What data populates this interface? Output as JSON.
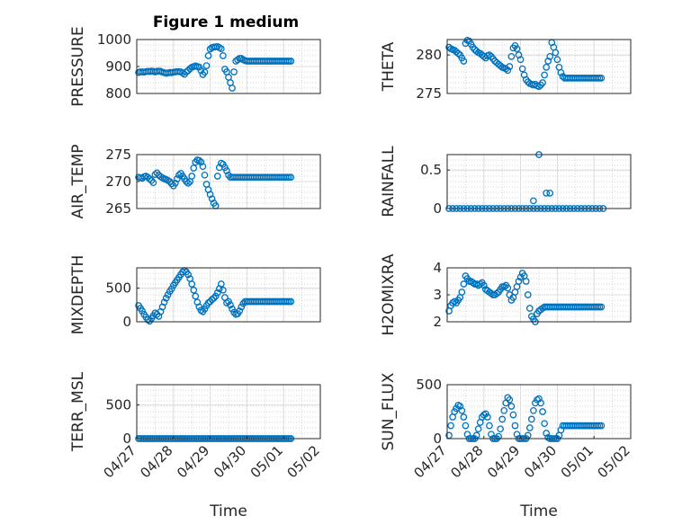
{
  "figure": {
    "title": "Figure 1 medium",
    "marker_color": "#0072BD"
  },
  "chart_data": [
    {
      "type": "scatter",
      "ylabel": "PRESSURE",
      "ylim": [
        800,
        1000
      ],
      "yticks": [
        800,
        900,
        1000
      ],
      "xlim": [
        0,
        5
      ],
      "xticks": [],
      "grid": true,
      "minor_grid": true,
      "x": [
        0.05,
        0.1,
        0.15,
        0.2,
        0.25,
        0.3,
        0.35,
        0.4,
        0.45,
        0.5,
        0.55,
        0.6,
        0.65,
        0.7,
        0.75,
        0.8,
        0.85,
        0.9,
        0.95,
        1.0,
        1.05,
        1.1,
        1.15,
        1.2,
        1.25,
        1.3,
        1.35,
        1.4,
        1.45,
        1.5,
        1.55,
        1.6,
        1.65,
        1.7,
        1.75,
        1.8,
        1.85,
        1.9,
        1.95,
        2.0,
        2.05,
        2.1,
        2.15,
        2.2,
        2.25,
        2.3,
        2.35,
        2.4,
        2.45,
        2.5,
        2.55,
        2.6,
        2.65,
        2.7,
        2.75,
        2.8,
        2.85,
        2.9,
        2.95,
        3.0,
        3.05,
        3.1,
        3.15,
        3.2,
        3.25,
        3.3,
        3.35,
        3.4,
        3.45,
        3.5,
        3.55,
        3.6,
        3.65,
        3.7,
        3.75,
        3.8,
        3.85,
        3.9,
        3.95,
        4.0,
        4.05,
        4.1,
        4.15,
        4.2
      ],
      "y": [
        878,
        880,
        880,
        879,
        881,
        882,
        881,
        883,
        882,
        880,
        882,
        883,
        882,
        879,
        877,
        875,
        876,
        878,
        877,
        879,
        880,
        881,
        881,
        880,
        876,
        871,
        880,
        885,
        892,
        897,
        900,
        902,
        900,
        898,
        885,
        870,
        879,
        903,
        940,
        965,
        970,
        972,
        973,
        974,
        970,
        966,
        940,
        890,
        880,
        860,
        840,
        820,
        880,
        920,
        925,
        930,
        930,
        925,
        922,
        920,
        920,
        920,
        920,
        920,
        920,
        920,
        920,
        920,
        920,
        920,
        920,
        920,
        920,
        920,
        920,
        920,
        920,
        920,
        920,
        920,
        920,
        920,
        920,
        920
      ]
    },
    {
      "type": "scatter",
      "ylabel": "THETA",
      "ylim": [
        275,
        282
      ],
      "yticks": [
        275,
        280
      ],
      "xlim": [
        0,
        5
      ],
      "xticks": [],
      "grid": true,
      "minor_grid": true,
      "x": [
        0.05,
        0.1,
        0.15,
        0.2,
        0.25,
        0.3,
        0.35,
        0.4,
        0.45,
        0.5,
        0.55,
        0.6,
        0.65,
        0.7,
        0.75,
        0.8,
        0.85,
        0.9,
        0.95,
        1.0,
        1.05,
        1.1,
        1.15,
        1.2,
        1.25,
        1.3,
        1.35,
        1.4,
        1.45,
        1.5,
        1.55,
        1.6,
        1.65,
        1.7,
        1.75,
        1.8,
        1.85,
        1.9,
        1.95,
        2.0,
        2.05,
        2.1,
        2.15,
        2.2,
        2.25,
        2.3,
        2.35,
        2.4,
        2.45,
        2.5,
        2.55,
        2.6,
        2.65,
        2.7,
        2.75,
        2.8,
        2.85,
        2.9,
        2.95,
        3.0,
        3.05,
        3.1,
        3.15,
        3.2,
        3.25,
        3.3,
        3.35,
        3.4,
        3.45,
        3.5,
        3.55,
        3.6,
        3.65,
        3.7,
        3.75,
        3.8,
        3.85,
        3.9,
        3.95,
        4.0,
        4.05,
        4.1,
        4.15,
        4.2
      ],
      "y": [
        281,
        280.8,
        280.7,
        280.6,
        280.4,
        280.2,
        280,
        279.6,
        279.2,
        281.5,
        281.9,
        281.8,
        281.4,
        281,
        280.7,
        280.5,
        280.3,
        280.2,
        280,
        279.8,
        279.6,
        279.9,
        280,
        279.8,
        279.5,
        279.2,
        279,
        278.8,
        278.6,
        278.4,
        278.3,
        278.2,
        278,
        278.5,
        279.8,
        280.9,
        281.2,
        280.8,
        280,
        279.4,
        278.2,
        277.4,
        276.8,
        276.5,
        276.3,
        276.2,
        276.1,
        276.2,
        276,
        275.9,
        276.1,
        276.4,
        277.4,
        278.4,
        279.2,
        279.8,
        281.6,
        281,
        280.3,
        279.4,
        278.4,
        277.7,
        277.2,
        277,
        277,
        277,
        277,
        277,
        277,
        277,
        277,
        277,
        277,
        277,
        277,
        277,
        277,
        277,
        277,
        277,
        277,
        277,
        277,
        277
      ]
    },
    {
      "type": "scatter",
      "ylabel": "AIR_TEMP",
      "ylim": [
        265,
        275
      ],
      "yticks": [
        265,
        270,
        275
      ],
      "xlim": [
        0,
        5
      ],
      "xticks": [],
      "grid": true,
      "minor_grid": true,
      "x": [
        0.05,
        0.1,
        0.15,
        0.2,
        0.25,
        0.3,
        0.35,
        0.4,
        0.45,
        0.5,
        0.55,
        0.6,
        0.65,
        0.7,
        0.75,
        0.8,
        0.85,
        0.9,
        0.95,
        1.0,
        1.05,
        1.1,
        1.15,
        1.2,
        1.25,
        1.3,
        1.35,
        1.4,
        1.45,
        1.5,
        1.55,
        1.6,
        1.65,
        1.7,
        1.75,
        1.8,
        1.85,
        1.9,
        1.95,
        2.0,
        2.05,
        2.1,
        2.15,
        2.2,
        2.25,
        2.3,
        2.35,
        2.4,
        2.45,
        2.5,
        2.55,
        2.6,
        2.65,
        2.7,
        2.75,
        2.8,
        2.85,
        2.9,
        2.95,
        3.0,
        3.05,
        3.1,
        3.15,
        3.2,
        3.25,
        3.3,
        3.35,
        3.4,
        3.45,
        3.5,
        3.55,
        3.6,
        3.65,
        3.7,
        3.75,
        3.8,
        3.85,
        3.9,
        3.95,
        4.0,
        4.05,
        4.1,
        4.15,
        4.2
      ],
      "y": [
        270.8,
        270.7,
        270.6,
        270.9,
        271,
        270.8,
        270.5,
        270.2,
        269.8,
        271.3,
        271.6,
        271.2,
        270.9,
        270.7,
        270.5,
        270.4,
        270.2,
        270,
        269.6,
        269.2,
        269.7,
        270.5,
        271.2,
        271.5,
        271,
        270.5,
        270,
        269.7,
        270,
        271,
        272.5,
        273.6,
        274,
        273.9,
        273.6,
        272.8,
        271.2,
        269.5,
        268.5,
        267.6,
        266.8,
        266,
        265.5,
        271,
        272.6,
        273.4,
        273.2,
        272.6,
        272,
        271.2,
        270.8,
        270.8,
        270.8,
        270.8,
        270.8,
        270.8,
        270.8,
        270.8,
        270.8,
        270.8,
        270.8,
        270.8,
        270.8,
        270.8,
        270.8,
        270.8,
        270.8,
        270.8,
        270.8,
        270.8,
        270.8,
        270.8,
        270.8,
        270.8,
        270.8,
        270.8,
        270.8,
        270.8,
        270.8,
        270.8,
        270.8,
        270.8,
        270.8,
        270.8
      ]
    },
    {
      "type": "scatter",
      "ylabel": "RAINFALL",
      "ylim": [
        0,
        0.7
      ],
      "yticks": [
        0,
        0.5
      ],
      "xlim": [
        0,
        5
      ],
      "xticks": [],
      "grid": true,
      "minor_grid": true,
      "x": [
        0.05,
        0.15,
        0.25,
        0.35,
        0.45,
        0.55,
        0.65,
        0.75,
        0.85,
        0.95,
        1.05,
        1.15,
        1.25,
        1.35,
        1.45,
        1.55,
        1.65,
        1.75,
        1.85,
        1.95,
        2.05,
        2.15,
        2.25,
        2.35,
        2.45,
        2.55,
        2.65,
        2.75,
        2.85,
        2.95,
        3.05,
        3.15,
        3.25,
        3.35,
        3.45,
        3.55,
        3.65,
        3.75,
        3.85,
        3.95,
        4.05,
        4.15,
        4.25,
        2.35,
        2.5,
        2.7,
        2.8
      ],
      "y": [
        0,
        0,
        0,
        0,
        0,
        0,
        0,
        0,
        0,
        0,
        0,
        0,
        0,
        0,
        0,
        0,
        0,
        0,
        0,
        0,
        0,
        0,
        0,
        0,
        0,
        0,
        0,
        0,
        0,
        0,
        0,
        0,
        0,
        0,
        0,
        0,
        0,
        0,
        0,
        0,
        0,
        0,
        0,
        0.1,
        0.7,
        0.2,
        0.2
      ]
    },
    {
      "type": "scatter",
      "ylabel": "MIXDEPTH",
      "ylim": [
        0,
        800
      ],
      "yticks": [
        0,
        500
      ],
      "xlim": [
        0,
        5
      ],
      "xticks": [],
      "grid": true,
      "minor_grid": true,
      "x": [
        0.05,
        0.1,
        0.15,
        0.2,
        0.25,
        0.3,
        0.35,
        0.4,
        0.45,
        0.5,
        0.55,
        0.6,
        0.65,
        0.7,
        0.75,
        0.8,
        0.85,
        0.9,
        0.95,
        1.0,
        1.05,
        1.1,
        1.15,
        1.2,
        1.25,
        1.3,
        1.35,
        1.4,
        1.45,
        1.5,
        1.55,
        1.6,
        1.65,
        1.7,
        1.75,
        1.8,
        1.85,
        1.9,
        1.95,
        2.0,
        2.05,
        2.1,
        2.15,
        2.2,
        2.25,
        2.3,
        2.35,
        2.4,
        2.45,
        2.5,
        2.55,
        2.6,
        2.65,
        2.7,
        2.75,
        2.8,
        2.85,
        2.9,
        2.95,
        3.0,
        3.05,
        3.1,
        3.15,
        3.2,
        3.25,
        3.3,
        3.35,
        3.4,
        3.45,
        3.5,
        3.55,
        3.6,
        3.65,
        3.7,
        3.75,
        3.8,
        3.85,
        3.9,
        3.95,
        4.0,
        4.05,
        4.1,
        4.15,
        4.2
      ],
      "y": [
        240,
        200,
        160,
        110,
        70,
        30,
        10,
        50,
        90,
        130,
        110,
        80,
        150,
        220,
        290,
        350,
        400,
        450,
        490,
        540,
        580,
        620,
        660,
        700,
        740,
        760,
        740,
        700,
        640,
        560,
        470,
        380,
        290,
        220,
        170,
        150,
        190,
        240,
        280,
        300,
        330,
        350,
        380,
        430,
        490,
        560,
        470,
        360,
        280,
        300,
        250,
        190,
        140,
        110,
        120,
        160,
        220,
        270,
        300,
        300,
        300,
        300,
        300,
        300,
        300,
        300,
        300,
        300,
        300,
        300,
        300,
        300,
        300,
        300,
        300,
        300,
        300,
        300,
        300,
        300,
        300,
        300,
        300,
        300
      ]
    },
    {
      "type": "scatter",
      "ylabel": "H2OMIXRA",
      "ylim": [
        2,
        4
      ],
      "yticks": [
        2,
        3,
        4
      ],
      "xlim": [
        0,
        5
      ],
      "xticks": [],
      "grid": true,
      "minor_grid": true,
      "x": [
        0.05,
        0.1,
        0.15,
        0.2,
        0.25,
        0.3,
        0.35,
        0.4,
        0.45,
        0.5,
        0.55,
        0.6,
        0.65,
        0.7,
        0.75,
        0.8,
        0.85,
        0.9,
        0.95,
        1.0,
        1.05,
        1.1,
        1.15,
        1.2,
        1.25,
        1.3,
        1.35,
        1.4,
        1.45,
        1.5,
        1.55,
        1.6,
        1.65,
        1.7,
        1.75,
        1.8,
        1.85,
        1.9,
        1.95,
        2.0,
        2.05,
        2.1,
        2.15,
        2.2,
        2.25,
        2.3,
        2.35,
        2.4,
        2.45,
        2.5,
        2.55,
        2.6,
        2.65,
        2.7,
        2.75,
        2.8,
        2.85,
        2.9,
        2.95,
        3.0,
        3.05,
        3.1,
        3.15,
        3.2,
        3.25,
        3.3,
        3.35,
        3.4,
        3.45,
        3.5,
        3.55,
        3.6,
        3.65,
        3.7,
        3.75,
        3.8,
        3.85,
        3.9,
        3.95,
        4.0,
        4.05,
        4.1,
        4.15,
        4.2
      ],
      "y": [
        2.4,
        2.6,
        2.7,
        2.75,
        2.7,
        2.8,
        2.9,
        3.1,
        3.4,
        3.7,
        3.6,
        3.5,
        3.5,
        3.45,
        3.4,
        3.4,
        3.35,
        3.4,
        3.45,
        3.35,
        3.2,
        3.15,
        3.1,
        3.05,
        3.0,
        3.0,
        3.05,
        3.1,
        3.2,
        3.3,
        3.3,
        3.35,
        3.25,
        3.0,
        2.8,
        2.9,
        3.1,
        3.3,
        3.5,
        3.65,
        3.8,
        3.7,
        3.5,
        3.0,
        2.5,
        2.2,
        2.1,
        2.0,
        2.3,
        2.4,
        2.45,
        2.5,
        2.55,
        2.55,
        2.55,
        2.55,
        2.55,
        2.55,
        2.55,
        2.55,
        2.55,
        2.55,
        2.55,
        2.55,
        2.55,
        2.55,
        2.55,
        2.55,
        2.55,
        2.55,
        2.55,
        2.55,
        2.55,
        2.55,
        2.55,
        2.55,
        2.55,
        2.55,
        2.55,
        2.55,
        2.55,
        2.55,
        2.55,
        2.55
      ]
    },
    {
      "type": "scatter",
      "ylabel": "TERR_MSL",
      "ylim": [
        0,
        800
      ],
      "yticks": [
        0,
        500
      ],
      "xlim": [
        0,
        5
      ],
      "xticks": [
        "04/27",
        "04/28",
        "04/29",
        "04/30",
        "05/01",
        "05/02"
      ],
      "xlabel": "Time",
      "grid": true,
      "minor_grid": true,
      "x": [
        0.05,
        0.1,
        0.15,
        0.2,
        0.25,
        0.3,
        0.35,
        0.4,
        0.45,
        0.5,
        0.55,
        0.6,
        0.65,
        0.7,
        0.75,
        0.8,
        0.85,
        0.9,
        0.95,
        1.0,
        1.05,
        1.1,
        1.15,
        1.2,
        1.25,
        1.3,
        1.35,
        1.4,
        1.45,
        1.5,
        1.55,
        1.6,
        1.65,
        1.7,
        1.75,
        1.8,
        1.85,
        1.9,
        1.95,
        2.0,
        2.05,
        2.1,
        2.15,
        2.2,
        2.25,
        2.3,
        2.35,
        2.4,
        2.45,
        2.5,
        2.55,
        2.6,
        2.65,
        2.7,
        2.75,
        2.8,
        2.85,
        2.9,
        2.95,
        3.0,
        3.05,
        3.1,
        3.15,
        3.2,
        3.25,
        3.3,
        3.35,
        3.4,
        3.45,
        3.5,
        3.55,
        3.6,
        3.65,
        3.7,
        3.75,
        3.8,
        3.85,
        3.9,
        3.95,
        4.0,
        4.05,
        4.1,
        4.15,
        4.2
      ],
      "y": [
        0,
        0,
        0,
        0,
        0,
        0,
        0,
        0,
        0,
        0,
        0,
        0,
        0,
        0,
        0,
        0,
        0,
        0,
        0,
        0,
        0,
        0,
        0,
        0,
        0,
        0,
        0,
        0,
        0,
        0,
        0,
        0,
        0,
        0,
        0,
        0,
        0,
        0,
        0,
        0,
        0,
        0,
        0,
        0,
        0,
        0,
        0,
        0,
        0,
        0,
        0,
        0,
        0,
        0,
        0,
        0,
        0,
        0,
        0,
        0,
        0,
        0,
        0,
        0,
        0,
        0,
        0,
        0,
        0,
        0,
        0,
        0,
        0,
        0,
        0,
        0,
        0,
        0,
        0,
        0,
        0,
        0,
        0,
        0
      ]
    },
    {
      "type": "scatter",
      "ylabel": "SUN_FLUX",
      "ylim": [
        0,
        500
      ],
      "yticks": [
        0,
        500
      ],
      "xlim": [
        0,
        5
      ],
      "xticks": [
        "04/27",
        "04/28",
        "04/29",
        "04/30",
        "05/01",
        "05/02"
      ],
      "xlabel": "Time",
      "grid": true,
      "minor_grid": true,
      "x": [
        0.05,
        0.1,
        0.15,
        0.2,
        0.25,
        0.3,
        0.35,
        0.4,
        0.45,
        0.5,
        0.55,
        0.6,
        0.65,
        0.7,
        0.75,
        0.8,
        0.85,
        0.9,
        0.95,
        1.0,
        1.05,
        1.1,
        1.15,
        1.2,
        1.25,
        1.3,
        1.35,
        1.4,
        1.45,
        1.5,
        1.55,
        1.6,
        1.65,
        1.7,
        1.75,
        1.8,
        1.85,
        1.9,
        1.95,
        2.0,
        2.05,
        2.1,
        2.15,
        2.2,
        2.25,
        2.3,
        2.35,
        2.4,
        2.45,
        2.5,
        2.55,
        2.6,
        2.65,
        2.7,
        2.75,
        2.8,
        2.85,
        2.9,
        2.95,
        3.0,
        3.05,
        3.1,
        3.15,
        3.2,
        3.25,
        3.3,
        3.35,
        3.4,
        3.45,
        3.5,
        3.55,
        3.6,
        3.65,
        3.7,
        3.75,
        3.8,
        3.85,
        3.9,
        3.95,
        4.0,
        4.05,
        4.1,
        4.15,
        4.2
      ],
      "y": [
        30,
        120,
        200,
        250,
        280,
        310,
        300,
        260,
        200,
        120,
        40,
        0,
        0,
        0,
        0,
        30,
        90,
        150,
        200,
        220,
        230,
        200,
        120,
        40,
        0,
        0,
        0,
        20,
        90,
        180,
        260,
        330,
        380,
        360,
        300,
        220,
        120,
        40,
        0,
        0,
        0,
        0,
        0,
        30,
        100,
        180,
        260,
        330,
        360,
        370,
        330,
        250,
        140,
        50,
        10,
        0,
        0,
        0,
        0,
        0,
        30,
        80,
        120,
        120,
        120,
        120,
        120,
        120,
        120,
        120,
        120,
        120,
        120,
        120,
        120,
        120,
        120,
        120,
        120,
        120,
        120,
        120,
        120,
        120
      ]
    }
  ]
}
